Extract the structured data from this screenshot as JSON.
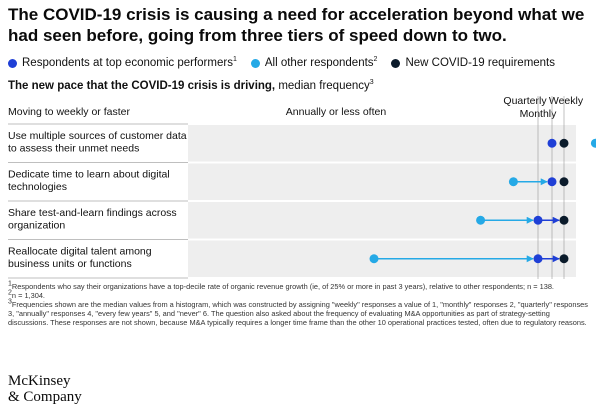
{
  "header": {
    "title": "The COVID-19 crisis is causing a need for acceleration beyond what we had seen before, going from three tiers of speed down to two.",
    "subtitle_bold": "The new pace that the COVID-19 crisis is driving,",
    "subtitle_rest": " median frequency",
    "subtitle_sup": "3"
  },
  "legend": [
    {
      "label": "Respondents at top economic performers",
      "sup": "1",
      "color": "#1f3fd6"
    },
    {
      "label": "All other respondents",
      "sup": "2",
      "color": "#25a9e6"
    },
    {
      "label": "New COVID-19 requirements",
      "sup": "",
      "color": "#0b1b2b"
    }
  ],
  "chart_data": {
    "type": "scatter",
    "title": "The new pace that the COVID-19 crisis is driving, median frequency",
    "column_header": "Moving to weekly or faster",
    "x_axis": {
      "categories": [
        "Annually or less often",
        "Quarterly",
        "Monthly",
        "Weekly"
      ],
      "values": [
        4,
        3,
        2,
        1
      ],
      "direction": "right is more frequent"
    },
    "series": [
      {
        "name": "Respondents at top economic performers",
        "color": "#1f3fd6",
        "values": [
          2,
          2,
          3,
          3
        ]
      },
      {
        "name": "All other respondents",
        "color": "#25a9e6",
        "values": [
          2.3,
          3.3,
          3.7,
          5
        ]
      },
      {
        "name": "New COVID-19 requirements",
        "color": "#0b1b2b",
        "values": [
          1,
          1,
          1,
          1
        ]
      }
    ],
    "categories": [
      "Use multiple sources of customer data to assess their unmet needs",
      "Dedicate time to learn about digital technologies",
      "Share test-and-learn findings across organization",
      "Reallocate digital talent among business units or functions"
    ],
    "category_lines": [
      [
        "Use multiple sources of customer data",
        "to assess their unmet needs"
      ],
      [
        "Dedicate time to learn about digital",
        "technologies"
      ],
      [
        "Share test-and-learn findings across",
        "organization"
      ],
      [
        "Reallocate digital talent among",
        "business units or functions"
      ]
    ]
  },
  "footnotes": {
    "f1": "Respondents who say their organizations have a top-decile rate of organic revenue growth (ie, of 25% or more in past 3 years), relative to other respondents; n = 138.",
    "f2": "n = 1,304.",
    "f3": "Frequencies shown are the median values from a histogram, which was constructed by assigning \"weekly\" responses a value of 1, \"monthly\" responses 2, \"quarterly\" responses 3, \"annually\" responses 4, \"every few years\" 5, and \"never\" 6. The question also asked about the frequency of evaluating M&A opportunities as part of strategy-setting discussions. These responses are not shown, because M&A typically requires a longer time frame than the other 10 operational practices tested, often due to regulatory reasons."
  },
  "brand": {
    "line1": "McKinsey",
    "line2": "& Company"
  }
}
